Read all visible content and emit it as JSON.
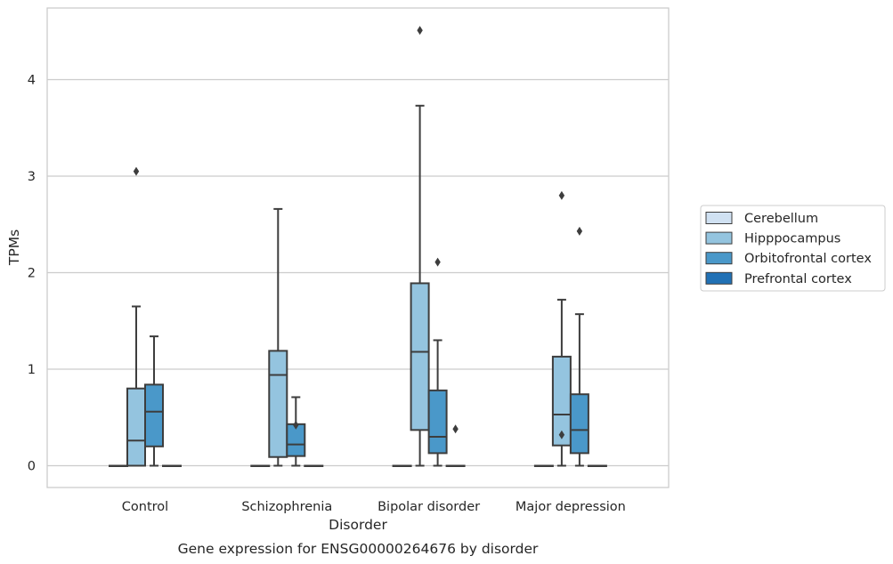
{
  "chart_data": {
    "type": "box",
    "caption": "Gene expression for ENSG00000264676 by disorder",
    "xlabel": "Disorder",
    "ylabel": "TPMs",
    "ylim": [
      -0.22,
      4.75
    ],
    "yticks": [
      0,
      1,
      2,
      3,
      4
    ],
    "grid": "horizontal",
    "legend_position": "right",
    "categories": [
      "Control",
      "Schizophrenia",
      "Bipolar disorder",
      "Major depression"
    ],
    "series": [
      {
        "name": "Cerebellum",
        "color": "#d0e1f2",
        "boxes": [
          {
            "q1": 0,
            "median": 0,
            "q3": 0,
            "whisker_low": 0,
            "whisker_high": 0,
            "outliers": []
          },
          {
            "q1": 0,
            "median": 0,
            "q3": 0,
            "whisker_low": 0,
            "whisker_high": 0,
            "outliers": []
          },
          {
            "q1": 0,
            "median": 0,
            "q3": 0,
            "whisker_low": 0,
            "whisker_high": 0,
            "outliers": []
          },
          {
            "q1": 0,
            "median": 0,
            "q3": 0,
            "whisker_low": 0,
            "whisker_high": 0,
            "outliers": []
          }
        ]
      },
      {
        "name": "Hipppocampus",
        "color": "#94c4df",
        "boxes": [
          {
            "q1": 0,
            "median": 0.26,
            "q3": 0.8,
            "whisker_low": 0,
            "whisker_high": 1.65,
            "outliers": [
              3.05
            ]
          },
          {
            "q1": 0.09,
            "median": 0.94,
            "q3": 1.19,
            "whisker_low": 0,
            "whisker_high": 2.66,
            "outliers": []
          },
          {
            "q1": 0.37,
            "median": 1.18,
            "q3": 1.89,
            "whisker_low": 0,
            "whisker_high": 3.73,
            "outliers": [
              4.51
            ]
          },
          {
            "q1": 0.21,
            "median": 0.53,
            "q3": 1.13,
            "whisker_low": 0,
            "whisker_high": 1.72,
            "outliers": [
              0.32,
              2.8
            ]
          }
        ]
      },
      {
        "name": "Orbitofrontal cortex",
        "color": "#4a98c9",
        "boxes": [
          {
            "q1": 0.2,
            "median": 0.56,
            "q3": 0.84,
            "whisker_low": 0,
            "whisker_high": 1.34,
            "outliers": []
          },
          {
            "q1": 0.1,
            "median": 0.22,
            "q3": 0.43,
            "whisker_low": 0,
            "whisker_high": 0.71,
            "outliers": [
              0.42
            ]
          },
          {
            "q1": 0.13,
            "median": 0.3,
            "q3": 0.78,
            "whisker_low": 0,
            "whisker_high": 1.3,
            "outliers": [
              2.11
            ]
          },
          {
            "q1": 0.13,
            "median": 0.37,
            "q3": 0.74,
            "whisker_low": 0,
            "whisker_high": 1.57,
            "outliers": [
              2.43
            ]
          }
        ]
      },
      {
        "name": "Prefrontal cortex",
        "color": "#2171b5",
        "boxes": [
          {
            "q1": 0,
            "median": 0,
            "q3": 0,
            "whisker_low": 0,
            "whisker_high": 0,
            "outliers": []
          },
          {
            "q1": 0,
            "median": 0,
            "q3": 0,
            "whisker_low": 0,
            "whisker_high": 0,
            "outliers": []
          },
          {
            "q1": 0,
            "median": 0,
            "q3": 0,
            "whisker_low": 0,
            "whisker_high": 0,
            "outliers": [
              0.38
            ]
          },
          {
            "q1": 0,
            "median": 0,
            "q3": 0,
            "whisker_low": 0,
            "whisker_high": 0,
            "outliers": []
          }
        ]
      }
    ]
  }
}
